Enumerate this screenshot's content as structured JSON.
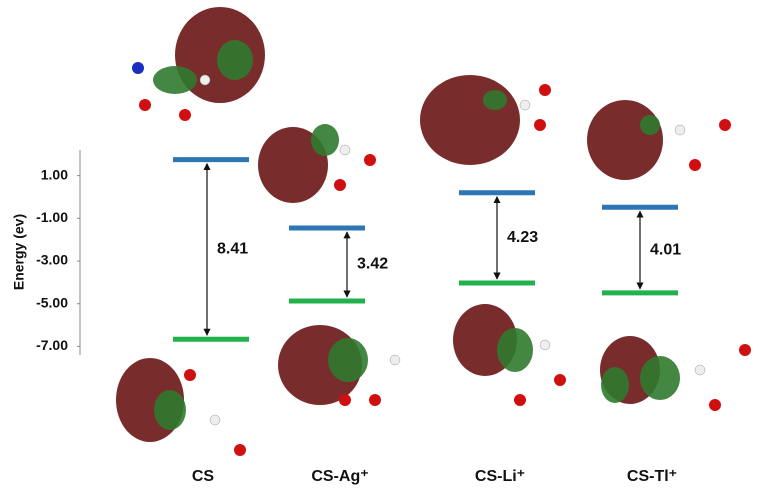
{
  "chart_data": {
    "type": "energy-levels",
    "ylabel": "Energy (ev)",
    "categories": [
      "CS",
      "CS-Ag⁺",
      "CS-Li⁺",
      "CS-Tl⁺"
    ],
    "lumo": [
      1.75,
      -1.45,
      0.2,
      -0.48
    ],
    "homo": [
      -6.66,
      -4.87,
      -4.03,
      -4.49
    ],
    "gaps": [
      8.41,
      3.42,
      4.23,
      4.01
    ],
    "lumo_color": "#2e75b6",
    "homo_color": "#22b14c",
    "ylim": [
      -7.4,
      2.2
    ],
    "yticks": [
      {
        "value": 1,
        "label": "1.00"
      },
      {
        "value": -1,
        "label": "-1.00"
      },
      {
        "value": -3,
        "label": "-3.00"
      },
      {
        "value": -5,
        "label": "-5.00"
      },
      {
        "value": -7,
        "label": "-7.00"
      }
    ]
  }
}
